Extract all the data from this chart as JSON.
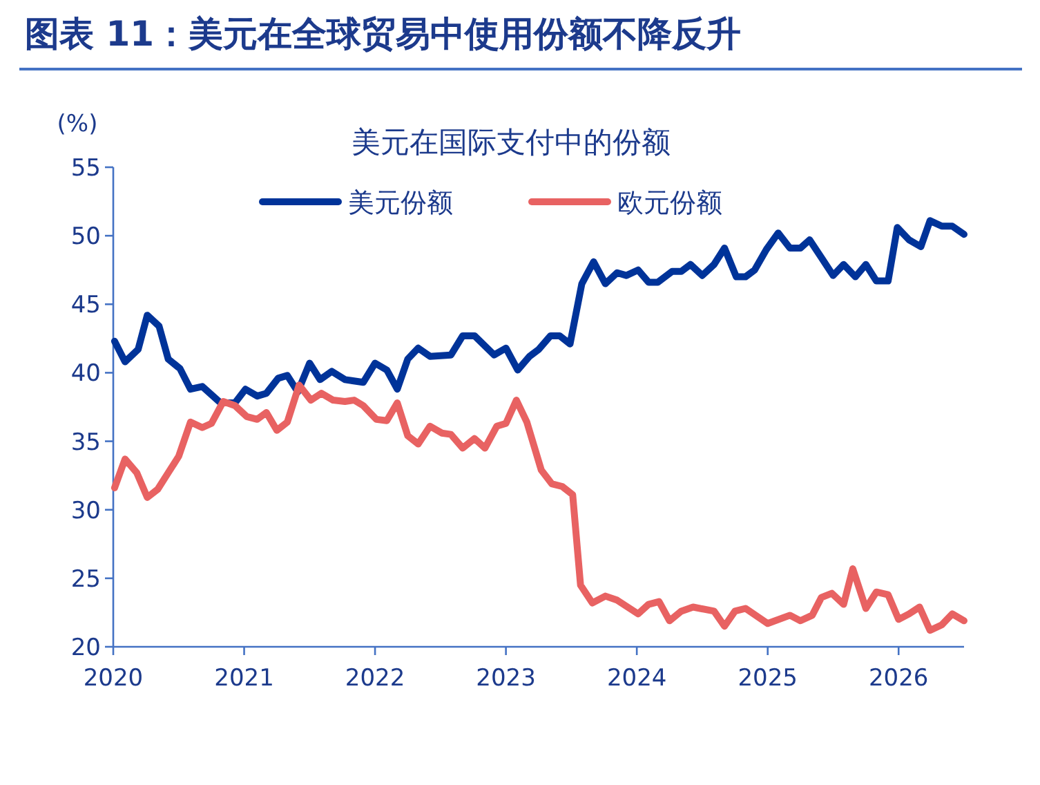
{
  "chart_data": {
    "type": "line",
    "title": "图表 11：美元在全球贸易中使用份额不降反升",
    "subtitle": "美元在国际支付中的份额",
    "ylabel": "(%)",
    "xlim": [
      2020,
      2026.5
    ],
    "xticks": [
      2020,
      2021,
      2022,
      2023,
      2024,
      2025,
      2026
    ],
    "ylim": [
      20,
      55
    ],
    "yticks": [
      20,
      25,
      30,
      35,
      40,
      45,
      50,
      55
    ],
    "legend": "top",
    "series": [
      {
        "name": "美元份额",
        "color": "#003399",
        "x": [
          2020.01,
          2020.09,
          2020.19,
          2020.26,
          2020.35,
          2020.42,
          2020.51,
          2020.59,
          2020.68,
          2020.82,
          2020.93,
          2021.01,
          2021.1,
          2021.17,
          2021.26,
          2021.33,
          2021.41,
          2021.5,
          2021.58,
          2021.67,
          2021.77,
          2021.91,
          2022.0,
          2022.09,
          2022.17,
          2022.25,
          2022.33,
          2022.42,
          2022.58,
          2022.67,
          2022.76,
          2022.91,
          2023.0,
          2023.09,
          2023.18,
          2023.25,
          2023.34,
          2023.41,
          2023.49,
          2023.58,
          2023.67,
          2023.76,
          2023.85,
          2023.92,
          2024.01,
          2024.09,
          2024.16,
          2024.27,
          2024.34,
          2024.41,
          2024.5,
          2024.59,
          2024.67,
          2024.76,
          2024.83,
          2024.9,
          2024.99,
          2025.08,
          2025.17,
          2025.25,
          2025.32,
          2025.41,
          2025.5,
          2025.58,
          2025.67,
          2025.75,
          2025.83,
          2025.92,
          2025.99,
          2026.08,
          2026.17,
          2026.24,
          2026.33,
          2026.41,
          2026.5
        ],
        "values": [
          42.3,
          40.8,
          41.7,
          44.2,
          43.4,
          41.0,
          40.3,
          38.8,
          39.0,
          37.8,
          37.8,
          38.8,
          38.3,
          38.5,
          39.6,
          39.8,
          38.6,
          40.7,
          39.5,
          40.1,
          39.5,
          39.3,
          40.7,
          40.2,
          38.8,
          41.0,
          41.8,
          41.2,
          41.3,
          42.7,
          42.7,
          41.3,
          41.8,
          40.2,
          41.2,
          41.7,
          42.7,
          42.7,
          42.1,
          46.5,
          48.1,
          46.5,
          47.3,
          47.1,
          47.5,
          46.6,
          46.6,
          47.4,
          47.4,
          47.9,
          47.1,
          47.9,
          49.1,
          47.0,
          47.0,
          47.5,
          49.0,
          50.2,
          49.1,
          49.1,
          49.7,
          48.4,
          47.1,
          47.9,
          47.0,
          47.9,
          46.7,
          46.7,
          50.6,
          49.7,
          49.2,
          51.1,
          50.7,
          50.7,
          50.1
        ]
      },
      {
        "name": "欧元份额",
        "color": "#e86262",
        "x": [
          2020.01,
          2020.09,
          2020.18,
          2020.26,
          2020.34,
          2020.42,
          2020.5,
          2020.59,
          2020.68,
          2020.75,
          2020.84,
          2020.93,
          2021.02,
          2021.1,
          2021.17,
          2021.25,
          2021.33,
          2021.42,
          2021.51,
          2021.59,
          2021.68,
          2021.77,
          2021.84,
          2021.91,
          2022.01,
          2022.09,
          2022.17,
          2022.25,
          2022.33,
          2022.42,
          2022.51,
          2022.58,
          2022.67,
          2022.76,
          2022.84,
          2022.93,
          2023.0,
          2023.08,
          2023.16,
          2023.27,
          2023.35,
          2023.43,
          2023.51,
          2023.57,
          2023.66,
          2023.76,
          2023.85,
          2024.01,
          2024.09,
          2024.17,
          2024.25,
          2024.34,
          2024.43,
          2024.59,
          2024.67,
          2024.75,
          2024.83,
          2025.0,
          2025.17,
          2025.25,
          2025.34,
          2025.41,
          2025.49,
          2025.58,
          2025.65,
          2025.75,
          2025.83,
          2025.92,
          2026.0,
          2026.08,
          2026.16,
          2026.24,
          2026.33,
          2026.41,
          2026.5
        ],
        "values": [
          31.6,
          33.7,
          32.7,
          30.9,
          31.5,
          32.7,
          33.9,
          36.4,
          36.0,
          36.3,
          37.9,
          37.6,
          36.8,
          36.6,
          37.1,
          35.8,
          36.4,
          39.1,
          38.0,
          38.5,
          38.0,
          37.9,
          38.0,
          37.6,
          36.6,
          36.5,
          37.8,
          35.4,
          34.8,
          36.1,
          35.6,
          35.5,
          34.5,
          35.2,
          34.5,
          36.1,
          36.3,
          38.0,
          36.4,
          32.9,
          31.9,
          31.7,
          31.1,
          24.5,
          23.2,
          23.7,
          23.4,
          22.4,
          23.1,
          23.3,
          21.9,
          22.6,
          22.9,
          22.6,
          21.5,
          22.6,
          22.8,
          21.7,
          22.3,
          21.9,
          22.3,
          23.6,
          23.9,
          23.1,
          25.7,
          22.8,
          24.0,
          23.8,
          22.0,
          22.4,
          22.9,
          21.2,
          21.6,
          22.4,
          21.9
        ]
      }
    ]
  }
}
